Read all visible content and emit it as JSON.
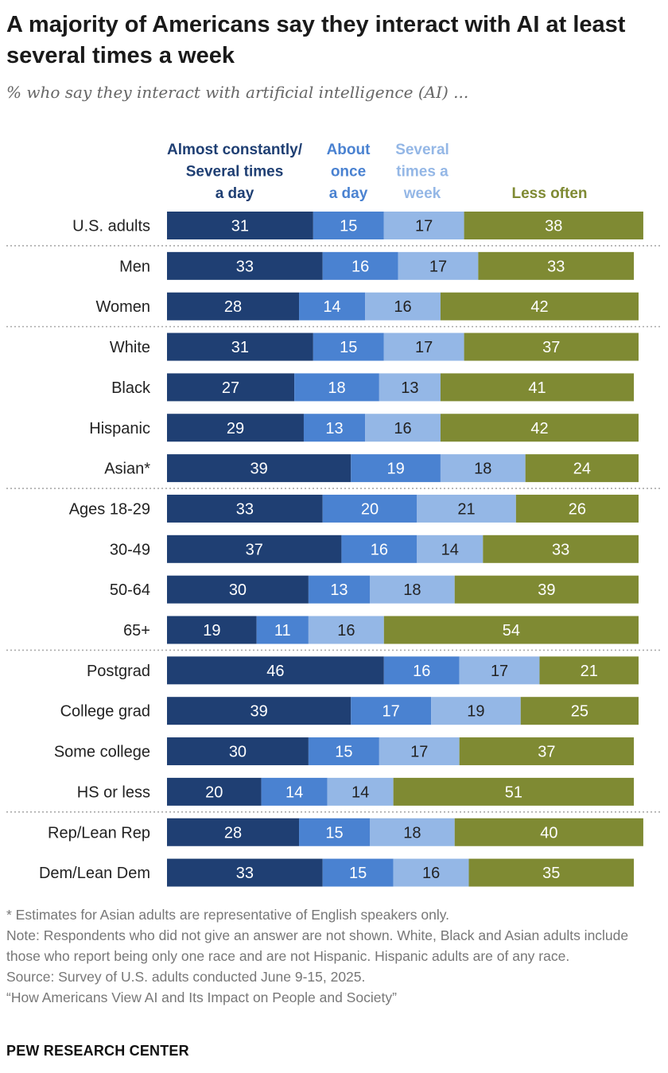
{
  "title": "A majority of Americans say they interact with AI at least several times a week",
  "subtitle": "% who say they interact with artificial intelligence (AI) ...",
  "colors": {
    "almost_constantly": "#1f3f73",
    "once_a_day": "#4a82d1",
    "several_week": "#94b7e6",
    "less_often": "#7f8a33",
    "separator": "#aaaaaa"
  },
  "chart_data": {
    "type": "bar",
    "orientation": "horizontal",
    "stacked": true,
    "categories": [
      "U.S. adults",
      "Men",
      "Women",
      "White",
      "Black",
      "Hispanic",
      "Asian*",
      "Ages 18-29",
      "30-49",
      "50-64",
      "65+",
      "Postgrad",
      "College grad",
      "Some college",
      "HS or less",
      "Rep/Lean Rep",
      "Dem/Lean Dem"
    ],
    "group_breaks_after": [
      0,
      2,
      6,
      10,
      14
    ],
    "series": [
      {
        "name": "Almost constantly/ Several times a day",
        "header_lines": [
          "Almost constantly/",
          "Several times",
          "a day"
        ],
        "color": "#1f3f73",
        "label_color": "#ffffff",
        "values": [
          31,
          33,
          28,
          31,
          27,
          29,
          39,
          33,
          37,
          30,
          19,
          46,
          39,
          30,
          20,
          28,
          33
        ]
      },
      {
        "name": "About once a day",
        "header_lines": [
          "About",
          "once",
          "a day"
        ],
        "color": "#4a82d1",
        "label_color": "#ffffff",
        "values": [
          15,
          16,
          14,
          15,
          18,
          13,
          19,
          20,
          16,
          13,
          11,
          16,
          17,
          15,
          14,
          15,
          15
        ]
      },
      {
        "name": "Several times a week",
        "header_lines": [
          "Several",
          "times a",
          "week"
        ],
        "color": "#94b7e6",
        "label_color": "#222222",
        "values": [
          17,
          17,
          16,
          17,
          13,
          16,
          18,
          21,
          14,
          18,
          16,
          17,
          19,
          17,
          14,
          18,
          16
        ]
      },
      {
        "name": "Less often",
        "header_lines": [
          "Less often"
        ],
        "color": "#7f8a33",
        "label_color": "#ffffff",
        "values": [
          38,
          33,
          42,
          37,
          41,
          42,
          24,
          26,
          33,
          39,
          54,
          21,
          25,
          37,
          51,
          40,
          35
        ]
      }
    ],
    "xlim": [
      0,
      100
    ]
  },
  "footnotes": [
    "* Estimates for Asian adults are representative of English speakers only.",
    "Note: Respondents who did not give an answer are not shown. White, Black and Asian adults include those who report being only one race and are not Hispanic. Hispanic adults are of any race.",
    "Source: Survey of U.S. adults conducted June 9-15, 2025.",
    "“How Americans View AI and Its Impact on People and Society”"
  ],
  "brand": "PEW RESEARCH CENTER"
}
